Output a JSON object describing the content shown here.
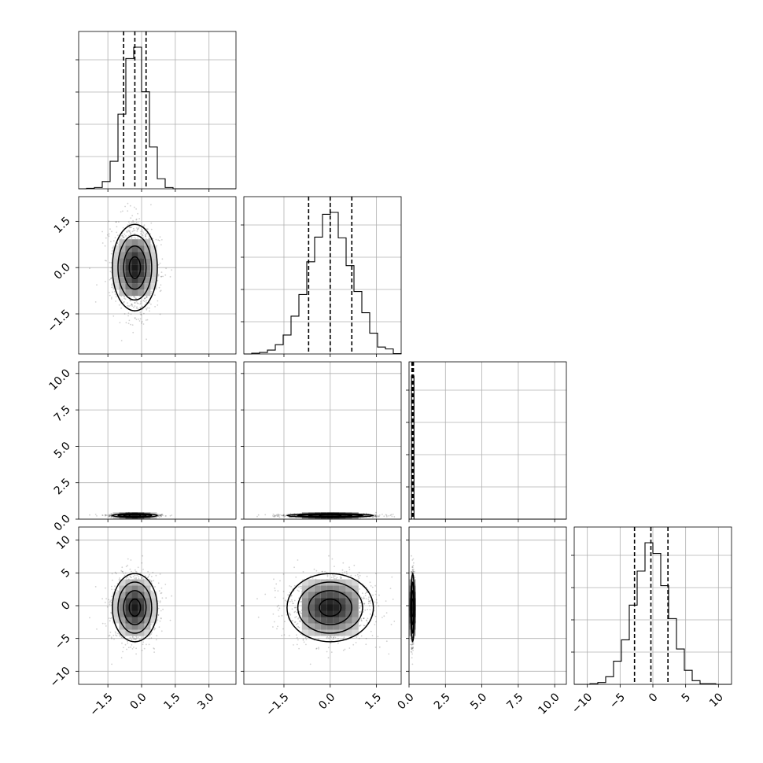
{
  "chart_data": {
    "type": "corner",
    "grid": true,
    "colors": {
      "ink": "#000000",
      "grid": "#b0b0b0"
    },
    "parameters": [
      {
        "id": "p0",
        "range": [
          -2.8,
          4.2
        ],
        "ticks": [
          -1.5,
          0.0,
          1.5,
          3.0
        ],
        "tick_labels": [
          "−1.5",
          "0.0",
          "1.5",
          "3.0"
        ],
        "mean": -0.3,
        "sd": 0.5,
        "quantiles": [
          -0.8,
          -0.3,
          0.2
        ]
      },
      {
        "id": "p1",
        "range": [
          -2.8,
          2.3
        ],
        "ticks": [
          -1.5,
          0.0,
          1.5
        ],
        "tick_labels": [
          "−1.5",
          "0.0",
          "1.5"
        ],
        "mean": 0.0,
        "sd": 0.7,
        "quantiles": [
          -0.7,
          0.0,
          0.7
        ]
      },
      {
        "id": "p2",
        "range": [
          0.0,
          10.8
        ],
        "ticks": [
          0.0,
          2.5,
          5.0,
          7.5,
          10.0
        ],
        "tick_labels": [
          "0.0",
          "2.5",
          "5.0",
          "7.5",
          "10.0"
        ],
        "mean": 0.25,
        "sd": 0.06,
        "quantiles": [
          0.2,
          0.25,
          0.3
        ]
      },
      {
        "id": "p3",
        "range": [
          -12,
          12
        ],
        "ticks": [
          -10,
          -5,
          0,
          5,
          10
        ],
        "tick_labels": [
          "−10",
          "−5",
          "0",
          "5",
          "10"
        ],
        "mean": -0.3,
        "sd": 2.6,
        "quantiles": [
          -2.8,
          -0.3,
          2.3
        ]
      }
    ]
  }
}
